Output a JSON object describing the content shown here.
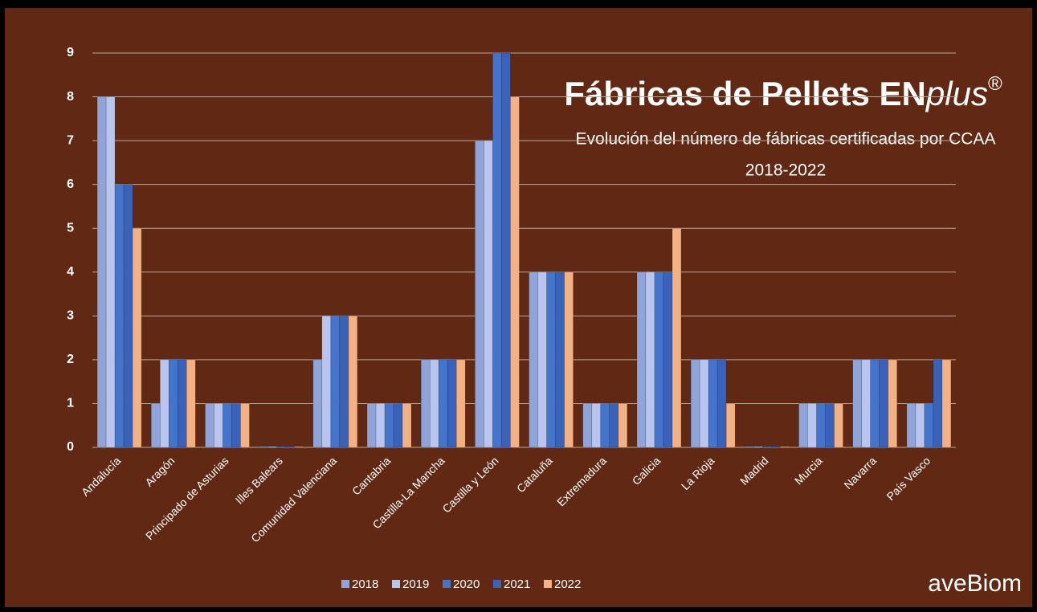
{
  "chart_data": {
    "type": "bar",
    "title": "Fábricas de Pellets EN",
    "title_italic": "plus",
    "title_mark": "®",
    "subtitle": [
      "Evolución del número de fábricas certificadas por CCAA",
      "2018-2022"
    ],
    "logo": "aveBiom",
    "categories": [
      "Andalucía",
      "Aragón",
      "Principado de Asturias",
      "Illes Balears",
      "Comunidad Valenciana",
      "Cantabria",
      "Castilla-La Mancha",
      "Castilla y León",
      "Cataluña",
      "Extremadura",
      "Galicia",
      "La Rioja",
      "Madrid",
      "Murcia",
      "Navarra",
      "País Vasco"
    ],
    "series": [
      {
        "name": "2018",
        "color": "#8fa4d8",
        "values": [
          8,
          1,
          1,
          0,
          2,
          1,
          2,
          7,
          4,
          1,
          4,
          2,
          0,
          1,
          2,
          1
        ]
      },
      {
        "name": "2019",
        "color": "#b9c5ec",
        "values": [
          8,
          2,
          1,
          0,
          3,
          1,
          2,
          7,
          4,
          1,
          4,
          2,
          0,
          1,
          2,
          1
        ]
      },
      {
        "name": "2020",
        "color": "#4474cc",
        "values": [
          6,
          2,
          1,
          0,
          3,
          1,
          2,
          9,
          4,
          1,
          4,
          2,
          0,
          1,
          2,
          1
        ]
      },
      {
        "name": "2021",
        "color": "#3a62b8",
        "values": [
          6,
          2,
          1,
          0,
          3,
          1,
          2,
          9,
          4,
          1,
          4,
          2,
          0,
          1,
          2,
          2
        ]
      },
      {
        "name": "2022",
        "color": "#f4b183",
        "values": [
          5,
          2,
          1,
          0,
          3,
          1,
          2,
          8,
          4,
          1,
          5,
          1,
          0,
          1,
          2,
          2
        ]
      }
    ],
    "ylim": [
      0,
      9
    ],
    "yticks": [
      0,
      1,
      2,
      3,
      4,
      5,
      6,
      7,
      8,
      9
    ],
    "grid": true,
    "legend": "bottom"
  }
}
